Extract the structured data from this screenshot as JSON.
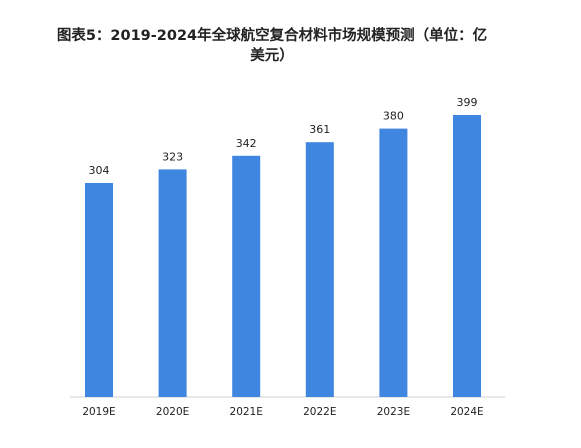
{
  "title": "图表5：2019-2024年全球航空复合材料市场规模预测（单位：亿美元）",
  "colors": {
    "bar": "#3f86e0",
    "text": "#222222",
    "axis": "#d0d0d0"
  },
  "chart_data": {
    "type": "bar",
    "title": "图表5：2019-2024年全球航空复合材料市场规模预测（单位：亿美元）",
    "categories": [
      "2019E",
      "2020E",
      "2021E",
      "2022E",
      "2023E",
      "2024E"
    ],
    "values": [
      304,
      323,
      342,
      361,
      380,
      399
    ],
    "data_labels": [
      "304",
      "323",
      "342",
      "361",
      "380",
      "399"
    ],
    "xlabel": "",
    "ylabel": "",
    "grid": false,
    "legend": "none"
  }
}
